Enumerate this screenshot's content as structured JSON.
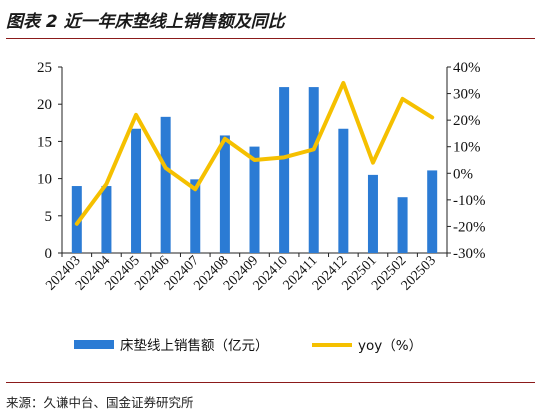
{
  "title": "图表 2 近一年床垫线上销售额及同比",
  "source": "来源：久谦中台、国金证券研究所",
  "chart_data": {
    "type": "bar+line",
    "categories": [
      "202403",
      "202404",
      "202405",
      "202406",
      "202407",
      "202408",
      "202409",
      "202410",
      "202411",
      "202412",
      "202501",
      "202502",
      "202503"
    ],
    "series": [
      {
        "name": "床垫线上销售额（亿元）",
        "type": "bar",
        "axis": "left",
        "color": "#2b7bd4",
        "values": [
          9.0,
          9.0,
          16.7,
          18.3,
          9.9,
          15.8,
          14.3,
          22.3,
          22.3,
          16.7,
          10.5,
          7.5,
          11.1
        ]
      },
      {
        "name": "yoy（%）",
        "type": "line",
        "axis": "right",
        "color": "#f5c000",
        "values": [
          -19,
          -4,
          22,
          2,
          -6,
          13,
          5,
          6,
          9,
          34,
          4,
          28,
          21
        ]
      }
    ],
    "left_axis": {
      "ylim": [
        0,
        25
      ],
      "ticks": [
        "0",
        "5",
        "10",
        "15",
        "20",
        "25"
      ]
    },
    "right_axis": {
      "ylim": [
        -30,
        40
      ],
      "ticks": [
        "-30%",
        "-20%",
        "-10%",
        "0%",
        "10%",
        "20%",
        "30%",
        "40%"
      ]
    },
    "legend_position": "bottom",
    "grid": false
  }
}
